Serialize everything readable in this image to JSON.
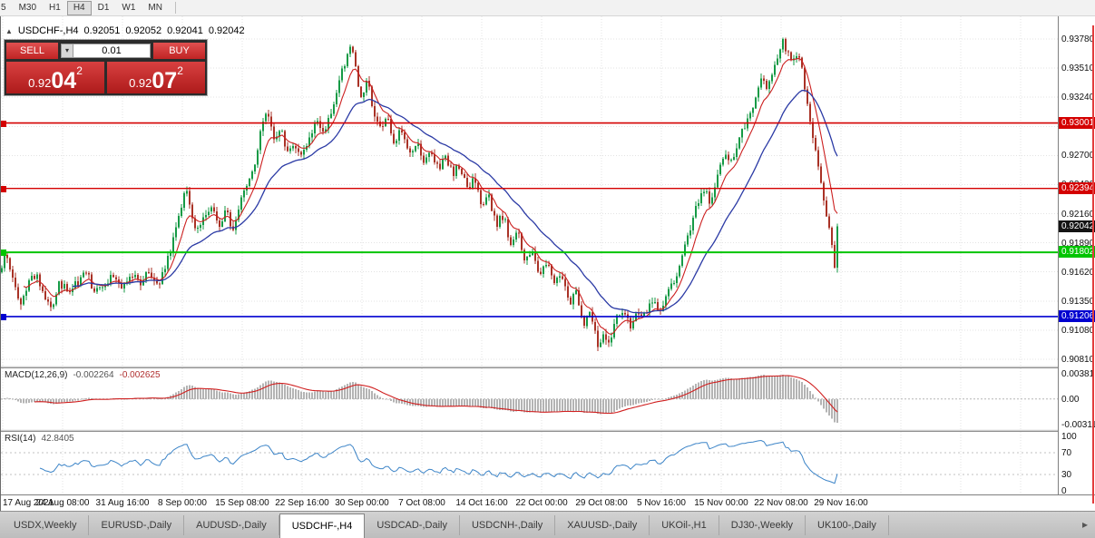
{
  "toolbar": {
    "timeframes": [
      {
        "label": "5",
        "active": false
      },
      {
        "label": "M30",
        "active": false
      },
      {
        "label": "H1",
        "active": false
      },
      {
        "label": "H4",
        "active": true
      },
      {
        "label": "D1",
        "active": false
      },
      {
        "label": "W1",
        "active": false
      },
      {
        "label": "MN",
        "active": false
      }
    ]
  },
  "quote_header": {
    "collapse_icon": "▲",
    "symbol": "USDCHF-,H4",
    "open": "0.92051",
    "high": "0.92052",
    "low": "0.92041",
    "close": "0.92042"
  },
  "trade_panel": {
    "sell_label": "SELL",
    "buy_label": "BUY",
    "volume": "0.01",
    "sell_price": {
      "small": "0.92",
      "big": "04",
      "sup": "2"
    },
    "buy_price": {
      "small": "0.92",
      "big": "07",
      "sup": "2"
    }
  },
  "chart_data": {
    "type": "candlestick",
    "symbol": "USDCHF-",
    "timeframe": "H4",
    "title": "USDCHF-,H4",
    "ohlc_current": {
      "open": 0.92051,
      "high": 0.92052,
      "low": 0.92041,
      "close": 0.92042
    },
    "y_axis": {
      "min": 0.9081,
      "max": 0.9378,
      "decimals": 5,
      "ticks": [
        0.9378,
        0.9351,
        0.9324,
        0.9297,
        0.927,
        0.9243,
        0.9216,
        0.9189,
        0.9162,
        0.9135,
        0.9108,
        0.9081
      ]
    },
    "x_axis": {
      "labels": [
        "17 Aug 2021",
        "24 Aug 08:00",
        "31 Aug 16:00",
        "8 Sep 00:00",
        "15 Sep 08:00",
        "22 Sep 16:00",
        "30 Sep 00:00",
        "7 Oct 08:00",
        "14 Oct 16:00",
        "22 Oct 00:00",
        "29 Oct 08:00",
        "5 Nov 16:00",
        "15 Nov 00:00",
        "22 Nov 08:00",
        "29 Nov 16:00"
      ]
    },
    "h_lines": [
      {
        "price": 0.93001,
        "label": "0.93001",
        "color": "#d40000",
        "width": 1.6
      },
      {
        "price": 0.92394,
        "label": "0.92394",
        "color": "#d40000",
        "width": 1.3
      },
      {
        "price": 0.91802,
        "label": "0.91802",
        "color": "#00c400",
        "width": 2
      },
      {
        "price": 0.91206,
        "label": "0.91206",
        "color": "#0000d0",
        "width": 1.6
      }
    ],
    "last_price": {
      "value": 0.92042,
      "label": "0.92042",
      "badge_color": "#141414"
    },
    "colors": {
      "up": "#159a45",
      "down": "#a93226",
      "ma_fast": "#cc2020",
      "ma_slow": "#2b3aa5",
      "grid": "#e3e3e3"
    },
    "close_path_anchors": [
      [
        0,
        0.9163
      ],
      [
        6,
        0.918
      ],
      [
        14,
        0.9155
      ],
      [
        22,
        0.9128
      ],
      [
        30,
        0.9152
      ],
      [
        40,
        0.916
      ],
      [
        48,
        0.9138
      ],
      [
        56,
        0.913
      ],
      [
        64,
        0.915
      ],
      [
        74,
        0.9145
      ],
      [
        84,
        0.9152
      ],
      [
        94,
        0.9162
      ],
      [
        104,
        0.9143
      ],
      [
        114,
        0.9152
      ],
      [
        124,
        0.9158
      ],
      [
        134,
        0.9148
      ],
      [
        144,
        0.916
      ],
      [
        154,
        0.9152
      ],
      [
        164,
        0.9163
      ],
      [
        172,
        0.915
      ],
      [
        180,
        0.9162
      ],
      [
        188,
        0.9185
      ],
      [
        196,
        0.9215
      ],
      [
        204,
        0.9243
      ],
      [
        210,
        0.9218
      ],
      [
        216,
        0.92
      ],
      [
        224,
        0.9212
      ],
      [
        232,
        0.9225
      ],
      [
        240,
        0.9203
      ],
      [
        248,
        0.9218
      ],
      [
        256,
        0.92
      ],
      [
        264,
        0.9228
      ],
      [
        272,
        0.9248
      ],
      [
        280,
        0.926
      ],
      [
        288,
        0.93
      ],
      [
        294,
        0.9312
      ],
      [
        300,
        0.9285
      ],
      [
        308,
        0.9295
      ],
      [
        316,
        0.9272
      ],
      [
        324,
        0.9282
      ],
      [
        332,
        0.9268
      ],
      [
        340,
        0.9287
      ],
      [
        348,
        0.93
      ],
      [
        356,
        0.929
      ],
      [
        364,
        0.9312
      ],
      [
        372,
        0.9335
      ],
      [
        380,
        0.936
      ],
      [
        386,
        0.9372
      ],
      [
        392,
        0.9345
      ],
      [
        398,
        0.9322
      ],
      [
        404,
        0.934
      ],
      [
        410,
        0.931
      ],
      [
        418,
        0.9295
      ],
      [
        426,
        0.9305
      ],
      [
        434,
        0.9282
      ],
      [
        442,
        0.9295
      ],
      [
        450,
        0.9272
      ],
      [
        458,
        0.9283
      ],
      [
        466,
        0.9262
      ],
      [
        474,
        0.9275
      ],
      [
        482,
        0.9258
      ],
      [
        490,
        0.9268
      ],
      [
        498,
        0.9252
      ],
      [
        506,
        0.9262
      ],
      [
        514,
        0.9238
      ],
      [
        522,
        0.9248
      ],
      [
        530,
        0.9222
      ],
      [
        538,
        0.9232
      ],
      [
        546,
        0.9205
      ],
      [
        554,
        0.9215
      ],
      [
        562,
        0.9188
      ],
      [
        570,
        0.9198
      ],
      [
        578,
        0.9172
      ],
      [
        586,
        0.9182
      ],
      [
        594,
        0.9158
      ],
      [
        602,
        0.917
      ],
      [
        610,
        0.915
      ],
      [
        618,
        0.916
      ],
      [
        626,
        0.9132
      ],
      [
        634,
        0.9142
      ],
      [
        642,
        0.9112
      ],
      [
        650,
        0.9125
      ],
      [
        658,
        0.9092
      ],
      [
        664,
        0.9108
      ],
      [
        670,
        0.9096
      ],
      [
        678,
        0.9118
      ],
      [
        686,
        0.9128
      ],
      [
        694,
        0.9112
      ],
      [
        702,
        0.9126
      ],
      [
        710,
        0.912
      ],
      [
        718,
        0.9136
      ],
      [
        726,
        0.9126
      ],
      [
        734,
        0.914
      ],
      [
        742,
        0.9152
      ],
      [
        750,
        0.9172
      ],
      [
        758,
        0.9195
      ],
      [
        766,
        0.9222
      ],
      [
        774,
        0.9238
      ],
      [
        782,
        0.9228
      ],
      [
        790,
        0.9252
      ],
      [
        798,
        0.927
      ],
      [
        806,
        0.9262
      ],
      [
        814,
        0.9288
      ],
      [
        822,
        0.9302
      ],
      [
        830,
        0.9318
      ],
      [
        838,
        0.9342
      ],
      [
        846,
        0.9332
      ],
      [
        854,
        0.9358
      ],
      [
        862,
        0.9374
      ],
      [
        870,
        0.936
      ],
      [
        878,
        0.9366
      ],
      [
        884,
        0.9344
      ],
      [
        890,
        0.9316
      ],
      [
        896,
        0.9282
      ],
      [
        902,
        0.9252
      ],
      [
        908,
        0.9228
      ],
      [
        914,
        0.9196
      ],
      [
        919,
        0.917
      ],
      [
        924,
        0.92042
      ]
    ],
    "indicators": {
      "macd": {
        "name": "MACD(12,26,9)",
        "values": [
          "-0.002264",
          "-0.002625"
        ],
        "fast": 12,
        "slow": 26,
        "signal": 9,
        "axis_labels": {
          "top": "0.00381",
          "zero": "0.00",
          "bottom": "-0.00311"
        },
        "histogram_color": "#b4b4b4",
        "signal_color": "#d02020"
      },
      "rsi": {
        "name": "RSI(14)",
        "value": "42.8405",
        "period": 14,
        "axis_labels": [
          "100",
          "70",
          "30",
          "0"
        ],
        "levels": [
          70,
          30
        ],
        "color": "#3d85c8"
      }
    }
  },
  "tab_bar": {
    "tabs": [
      "USDX,Weekly",
      "EURUSD-,Daily",
      "AUDUSD-,Daily",
      "USDCHF-,H4",
      "USDCAD-,Daily",
      "USDCNH-,Daily",
      "XAUUSD-,Daily",
      "UKOil-,H1",
      "DJ30-,Weekly",
      "UK100-,Daily"
    ],
    "active": "USDCHF-,H4",
    "scroll_icon": "▸"
  }
}
